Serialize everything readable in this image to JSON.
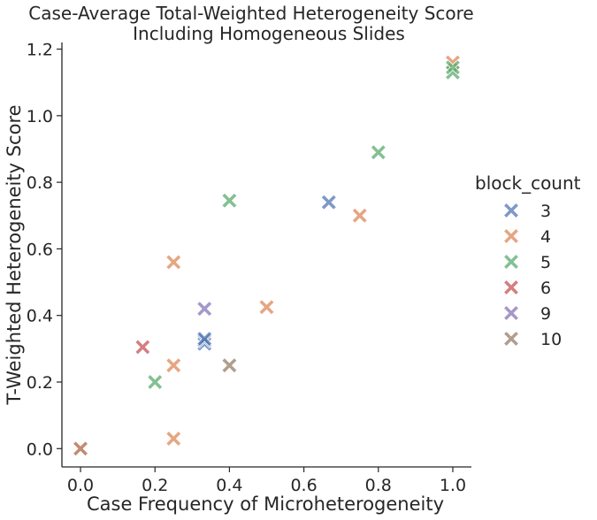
{
  "chart_data": {
    "type": "scatter",
    "title": [
      "Case-Average Total-Weighted Heterogeneity Score",
      "Including Homogeneous Slides"
    ],
    "xlabel": "Case Frequency of Microheterogeneity",
    "ylabel": "T-Weighted Heterogeneity Score",
    "xlim": [
      -0.05,
      1.05
    ],
    "ylim": [
      -0.055,
      1.22
    ],
    "xticks": [
      0.0,
      0.2,
      0.4,
      0.6,
      0.8,
      1.0
    ],
    "xtick_labels": [
      "0.0",
      "0.2",
      "0.4",
      "0.6",
      "0.8",
      "1.0"
    ],
    "yticks": [
      0.0,
      0.2,
      0.4,
      0.6,
      0.8,
      1.0,
      1.2
    ],
    "ytick_labels": [
      "0.0",
      "0.2",
      "0.4",
      "0.6",
      "0.8",
      "1.0",
      "1.2"
    ],
    "grid": false,
    "marker": "X",
    "legend": {
      "title": "block_count",
      "placement": "right-outside"
    },
    "series": [
      {
        "name": "3",
        "color": "#4c72b0",
        "points": [
          [
            0.0,
            0.0
          ],
          [
            0.333,
            0.315
          ],
          [
            0.333,
            0.325
          ],
          [
            0.333,
            0.33
          ],
          [
            0.667,
            0.74
          ]
        ]
      },
      {
        "name": "4",
        "color": "#dd8452",
        "points": [
          [
            0.0,
            0.0
          ],
          [
            0.25,
            0.03
          ],
          [
            0.25,
            0.25
          ],
          [
            0.25,
            0.56
          ],
          [
            0.5,
            0.425
          ],
          [
            0.75,
            0.7
          ],
          [
            1.0,
            1.16
          ]
        ]
      },
      {
        "name": "5",
        "color": "#55a868",
        "points": [
          [
            0.2,
            0.2
          ],
          [
            0.4,
            0.745
          ],
          [
            0.8,
            0.89
          ],
          [
            1.0,
            1.13
          ],
          [
            1.0,
            1.145
          ]
        ]
      },
      {
        "name": "6",
        "color": "#c44e52",
        "points": [
          [
            0.167,
            0.305
          ]
        ]
      },
      {
        "name": "9",
        "color": "#8172b3",
        "points": [
          [
            0.333,
            0.42
          ]
        ]
      },
      {
        "name": "10",
        "color": "#937860",
        "points": [
          [
            0.4,
            0.25
          ]
        ]
      }
    ]
  }
}
